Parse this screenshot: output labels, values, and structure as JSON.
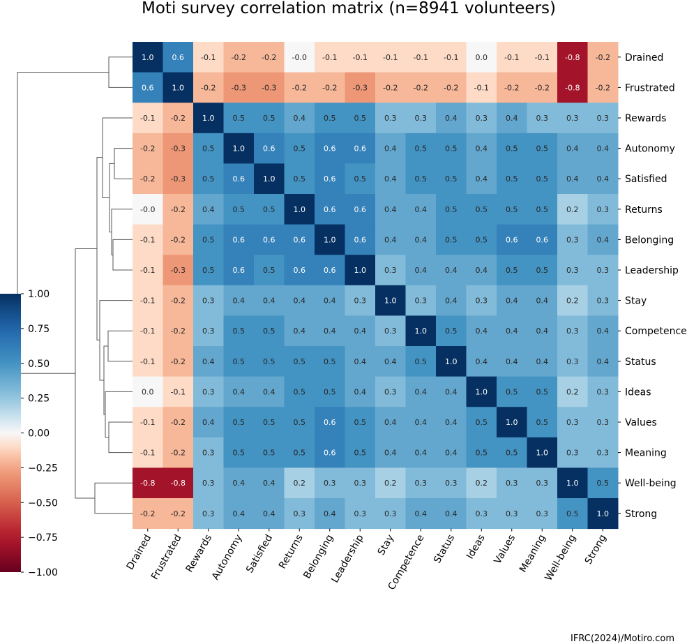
{
  "chart_data": {
    "type": "heatmap",
    "title": "Moti survey correlation matrix (n=8941 volunteers)",
    "labels": [
      "Drained",
      "Frustrated",
      "Rewards",
      "Autonomy",
      "Satisfied",
      "Returns",
      "Belonging",
      "Leadership",
      "Stay",
      "Competence",
      "Status",
      "Ideas",
      "Values",
      "Meaning",
      "Well-being",
      "Strong"
    ],
    "matrix": [
      [
        1.0,
        0.6,
        -0.1,
        -0.2,
        -0.2,
        -0.0,
        -0.1,
        -0.1,
        -0.1,
        -0.1,
        -0.1,
        0.0,
        -0.1,
        -0.1,
        -0.8,
        -0.2
      ],
      [
        0.6,
        1.0,
        -0.2,
        -0.3,
        -0.3,
        -0.2,
        -0.2,
        -0.3,
        -0.2,
        -0.2,
        -0.2,
        -0.1,
        -0.2,
        -0.2,
        -0.8,
        -0.2
      ],
      [
        -0.1,
        -0.2,
        1.0,
        0.5,
        0.5,
        0.4,
        0.5,
        0.5,
        0.3,
        0.3,
        0.4,
        0.3,
        0.4,
        0.3,
        0.3,
        0.3
      ],
      [
        -0.2,
        -0.3,
        0.5,
        1.0,
        0.6,
        0.5,
        0.6,
        0.6,
        0.4,
        0.5,
        0.5,
        0.4,
        0.5,
        0.5,
        0.4,
        0.4
      ],
      [
        -0.2,
        -0.3,
        0.5,
        0.6,
        1.0,
        0.5,
        0.6,
        0.5,
        0.4,
        0.5,
        0.5,
        0.4,
        0.5,
        0.5,
        0.4,
        0.4
      ],
      [
        -0.0,
        -0.2,
        0.4,
        0.5,
        0.5,
        1.0,
        0.6,
        0.6,
        0.4,
        0.4,
        0.5,
        0.5,
        0.5,
        0.5,
        0.2,
        0.3
      ],
      [
        -0.1,
        -0.2,
        0.5,
        0.6,
        0.6,
        0.6,
        1.0,
        0.6,
        0.4,
        0.4,
        0.5,
        0.5,
        0.6,
        0.6,
        0.3,
        0.4
      ],
      [
        -0.1,
        -0.3,
        0.5,
        0.6,
        0.5,
        0.6,
        0.6,
        1.0,
        0.3,
        0.4,
        0.4,
        0.4,
        0.5,
        0.5,
        0.3,
        0.3
      ],
      [
        -0.1,
        -0.2,
        0.3,
        0.4,
        0.4,
        0.4,
        0.4,
        0.3,
        1.0,
        0.3,
        0.4,
        0.3,
        0.4,
        0.4,
        0.2,
        0.3
      ],
      [
        -0.1,
        -0.2,
        0.3,
        0.5,
        0.5,
        0.4,
        0.4,
        0.4,
        0.3,
        1.0,
        0.5,
        0.4,
        0.4,
        0.4,
        0.3,
        0.4
      ],
      [
        -0.1,
        -0.2,
        0.4,
        0.5,
        0.5,
        0.5,
        0.5,
        0.4,
        0.4,
        0.5,
        1.0,
        0.4,
        0.4,
        0.4,
        0.3,
        0.4
      ],
      [
        0.0,
        -0.1,
        0.3,
        0.4,
        0.4,
        0.5,
        0.5,
        0.4,
        0.3,
        0.4,
        0.4,
        1.0,
        0.5,
        0.5,
        0.2,
        0.3
      ],
      [
        -0.1,
        -0.2,
        0.4,
        0.5,
        0.5,
        0.5,
        0.6,
        0.5,
        0.4,
        0.4,
        0.4,
        0.5,
        1.0,
        0.5,
        0.3,
        0.3
      ],
      [
        -0.1,
        -0.2,
        0.3,
        0.5,
        0.5,
        0.5,
        0.6,
        0.5,
        0.4,
        0.4,
        0.4,
        0.5,
        0.5,
        1.0,
        0.3,
        0.3
      ],
      [
        -0.8,
        -0.8,
        0.3,
        0.4,
        0.4,
        0.2,
        0.3,
        0.3,
        0.2,
        0.3,
        0.3,
        0.2,
        0.3,
        0.3,
        1.0,
        0.5
      ],
      [
        -0.2,
        -0.2,
        0.3,
        0.4,
        0.4,
        0.3,
        0.4,
        0.3,
        0.3,
        0.4,
        0.4,
        0.3,
        0.3,
        0.3,
        0.5,
        1.0
      ]
    ],
    "value_display": [
      [
        "1.0",
        "0.6",
        "-0.1",
        "-0.2",
        "-0.2",
        "-0.0",
        "-0.1",
        "-0.1",
        "-0.1",
        "-0.1",
        "-0.1",
        "0.0",
        "-0.1",
        "-0.1",
        "-0.8",
        "-0.2"
      ],
      [
        "0.6",
        "1.0",
        "-0.2",
        "-0.3",
        "-0.3",
        "-0.2",
        "-0.2",
        "-0.3",
        "-0.2",
        "-0.2",
        "-0.2",
        "-0.1",
        "-0.2",
        "-0.2",
        "-0.8",
        "-0.2"
      ],
      [
        "-0.1",
        "-0.2",
        "1.0",
        "0.5",
        "0.5",
        "0.4",
        "0.5",
        "0.5",
        "0.3",
        "0.3",
        "0.4",
        "0.3",
        "0.4",
        "0.3",
        "0.3",
        "0.3"
      ],
      [
        "-0.2",
        "-0.3",
        "0.5",
        "1.0",
        "0.6",
        "0.5",
        "0.6",
        "0.6",
        "0.4",
        "0.5",
        "0.5",
        "0.4",
        "0.5",
        "0.5",
        "0.4",
        "0.4"
      ],
      [
        "-0.2",
        "-0.3",
        "0.5",
        "0.6",
        "1.0",
        "0.5",
        "0.6",
        "0.5",
        "0.4",
        "0.5",
        "0.5",
        "0.4",
        "0.5",
        "0.5",
        "0.4",
        "0.4"
      ],
      [
        "-0.0",
        "-0.2",
        "0.4",
        "0.5",
        "0.5",
        "1.0",
        "0.6",
        "0.6",
        "0.4",
        "0.4",
        "0.5",
        "0.5",
        "0.5",
        "0.5",
        "0.2",
        "0.3"
      ],
      [
        "-0.1",
        "-0.2",
        "0.5",
        "0.6",
        "0.6",
        "0.6",
        "1.0",
        "0.6",
        "0.4",
        "0.4",
        "0.5",
        "0.5",
        "0.6",
        "0.6",
        "0.3",
        "0.4"
      ],
      [
        "-0.1",
        "-0.3",
        "0.5",
        "0.6",
        "0.5",
        "0.6",
        "0.6",
        "1.0",
        "0.3",
        "0.4",
        "0.4",
        "0.4",
        "0.5",
        "0.5",
        "0.3",
        "0.3"
      ],
      [
        "-0.1",
        "-0.2",
        "0.3",
        "0.4",
        "0.4",
        "0.4",
        "0.4",
        "0.3",
        "1.0",
        "0.3",
        "0.4",
        "0.3",
        "0.4",
        "0.4",
        "0.2",
        "0.3"
      ],
      [
        "-0.1",
        "-0.2",
        "0.3",
        "0.5",
        "0.5",
        "0.4",
        "0.4",
        "0.4",
        "0.3",
        "1.0",
        "0.5",
        "0.4",
        "0.4",
        "0.4",
        "0.3",
        "0.4"
      ],
      [
        "-0.1",
        "-0.2",
        "0.4",
        "0.5",
        "0.5",
        "0.5",
        "0.5",
        "0.4",
        "0.4",
        "0.5",
        "1.0",
        "0.4",
        "0.4",
        "0.4",
        "0.3",
        "0.4"
      ],
      [
        "0.0",
        "-0.1",
        "0.3",
        "0.4",
        "0.4",
        "0.5",
        "0.5",
        "0.4",
        "0.3",
        "0.4",
        "0.4",
        "1.0",
        "0.5",
        "0.5",
        "0.2",
        "0.3"
      ],
      [
        "-0.1",
        "-0.2",
        "0.4",
        "0.5",
        "0.5",
        "0.5",
        "0.6",
        "0.5",
        "0.4",
        "0.4",
        "0.4",
        "0.5",
        "1.0",
        "0.5",
        "0.3",
        "0.3"
      ],
      [
        "-0.1",
        "-0.2",
        "0.3",
        "0.5",
        "0.5",
        "0.5",
        "0.6",
        "0.5",
        "0.4",
        "0.4",
        "0.4",
        "0.5",
        "0.5",
        "1.0",
        "0.3",
        "0.3"
      ],
      [
        "-0.8",
        "-0.8",
        "0.3",
        "0.4",
        "0.4",
        "0.2",
        "0.3",
        "0.3",
        "0.2",
        "0.3",
        "0.3",
        "0.2",
        "0.3",
        "0.3",
        "1.0",
        "0.5"
      ],
      [
        "-0.2",
        "-0.2",
        "0.3",
        "0.4",
        "0.4",
        "0.3",
        "0.4",
        "0.3",
        "0.3",
        "0.4",
        "0.4",
        "0.3",
        "0.3",
        "0.3",
        "0.5",
        "1.0"
      ]
    ],
    "colorbar": {
      "colormap": "RdBu",
      "range": [
        -1.0,
        1.0
      ],
      "ticks": [
        1.0,
        0.75,
        0.5,
        0.25,
        0.0,
        -0.25,
        -0.5,
        -0.75,
        -1.0
      ],
      "tick_labels": [
        "1.00",
        "0.75",
        "0.50",
        "0.25",
        "0.00",
        "−0.25",
        "−0.50",
        "−0.75",
        "−1.00"
      ],
      "placement": "left"
    },
    "dendrogram": "row clustering, left side"
  },
  "credit": "IFRC(2024)/Motiro.com"
}
